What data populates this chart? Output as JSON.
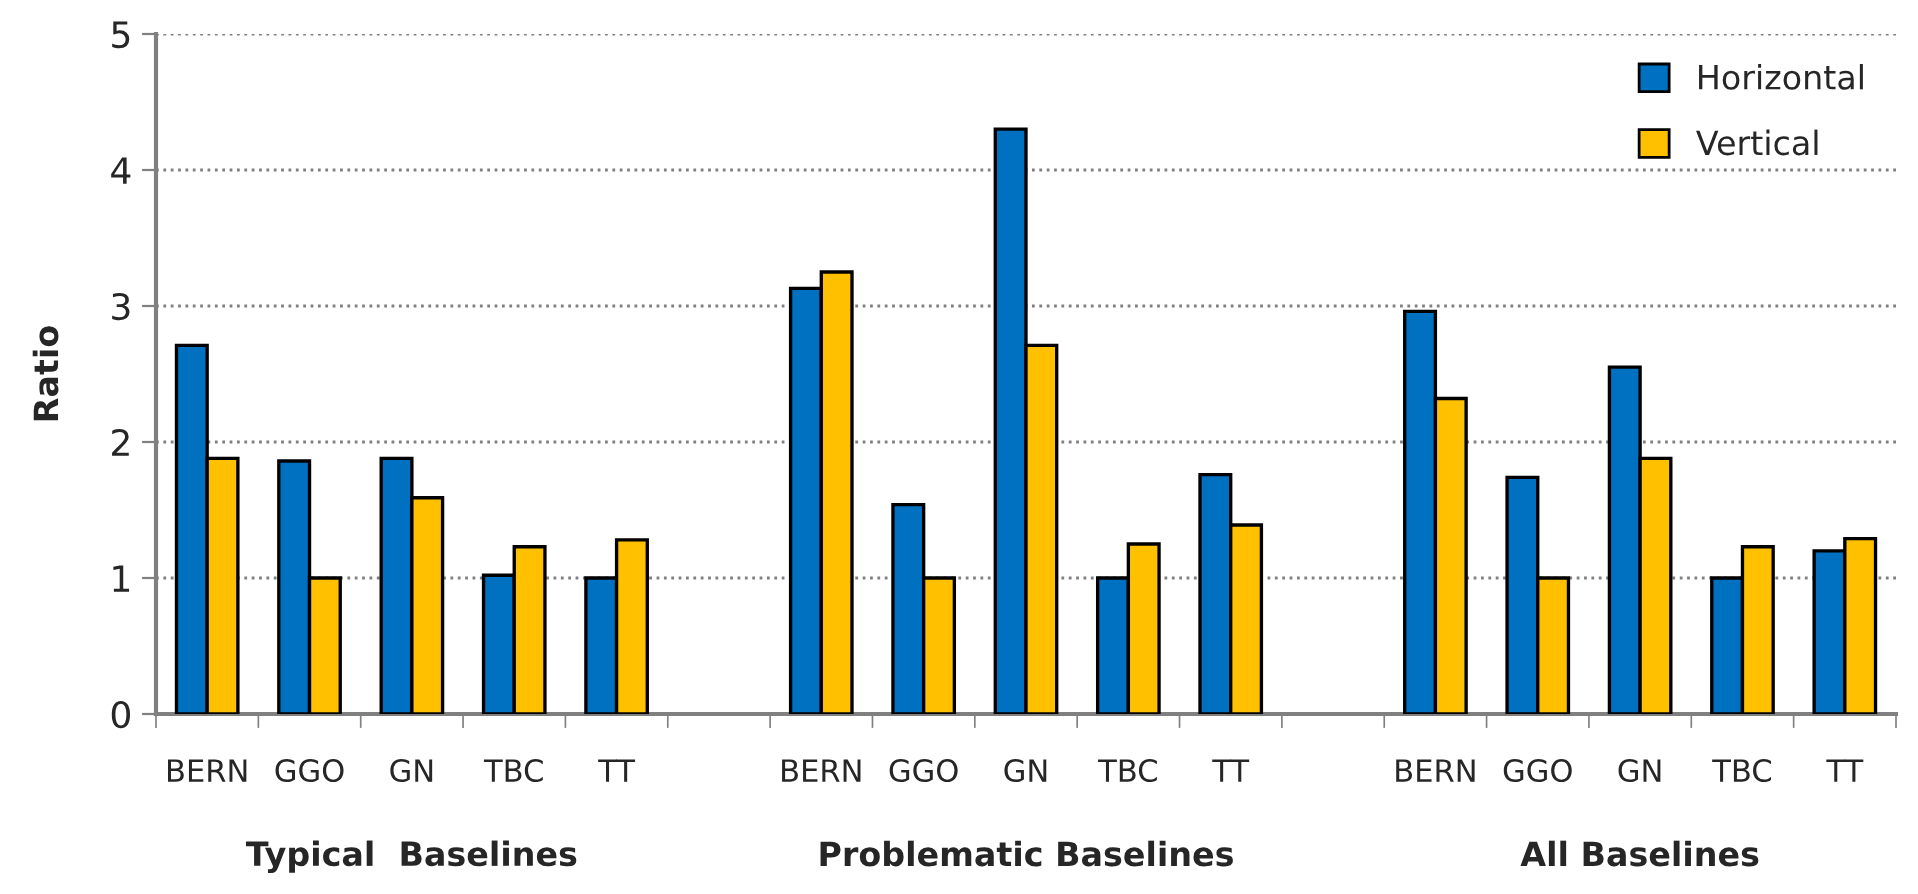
{
  "chart_data": {
    "type": "bar",
    "ylabel": "Ratio",
    "categories": [
      "BERN",
      "GGO",
      "GN",
      "TBC",
      "TT",
      null,
      "BERN",
      "GGO",
      "GN",
      "TBC",
      "TT",
      null,
      "BERN",
      "GGO",
      "GN",
      "TBC",
      "TT"
    ],
    "series": [
      {
        "name": "Horizontal",
        "color": "#0070c0",
        "values": [
          2.71,
          1.86,
          1.88,
          1.02,
          1.0,
          null,
          3.13,
          1.54,
          4.3,
          1.0,
          1.76,
          null,
          2.96,
          1.74,
          2.55,
          1.0,
          1.2
        ]
      },
      {
        "name": "Vertical",
        "color": "#ffc000",
        "values": [
          1.88,
          1.0,
          1.59,
          1.23,
          1.28,
          null,
          3.25,
          1.0,
          2.71,
          1.25,
          1.39,
          null,
          2.32,
          1.0,
          1.88,
          1.23,
          1.29
        ]
      }
    ],
    "ylim": [
      0,
      5
    ],
    "yticks": [
      0,
      1,
      2,
      3,
      4,
      5
    ],
    "grid": "y",
    "legend": "top right",
    "annotations": [
      "Typical  Baselines",
      "Problematic Baselines",
      "All Baselines"
    ]
  }
}
